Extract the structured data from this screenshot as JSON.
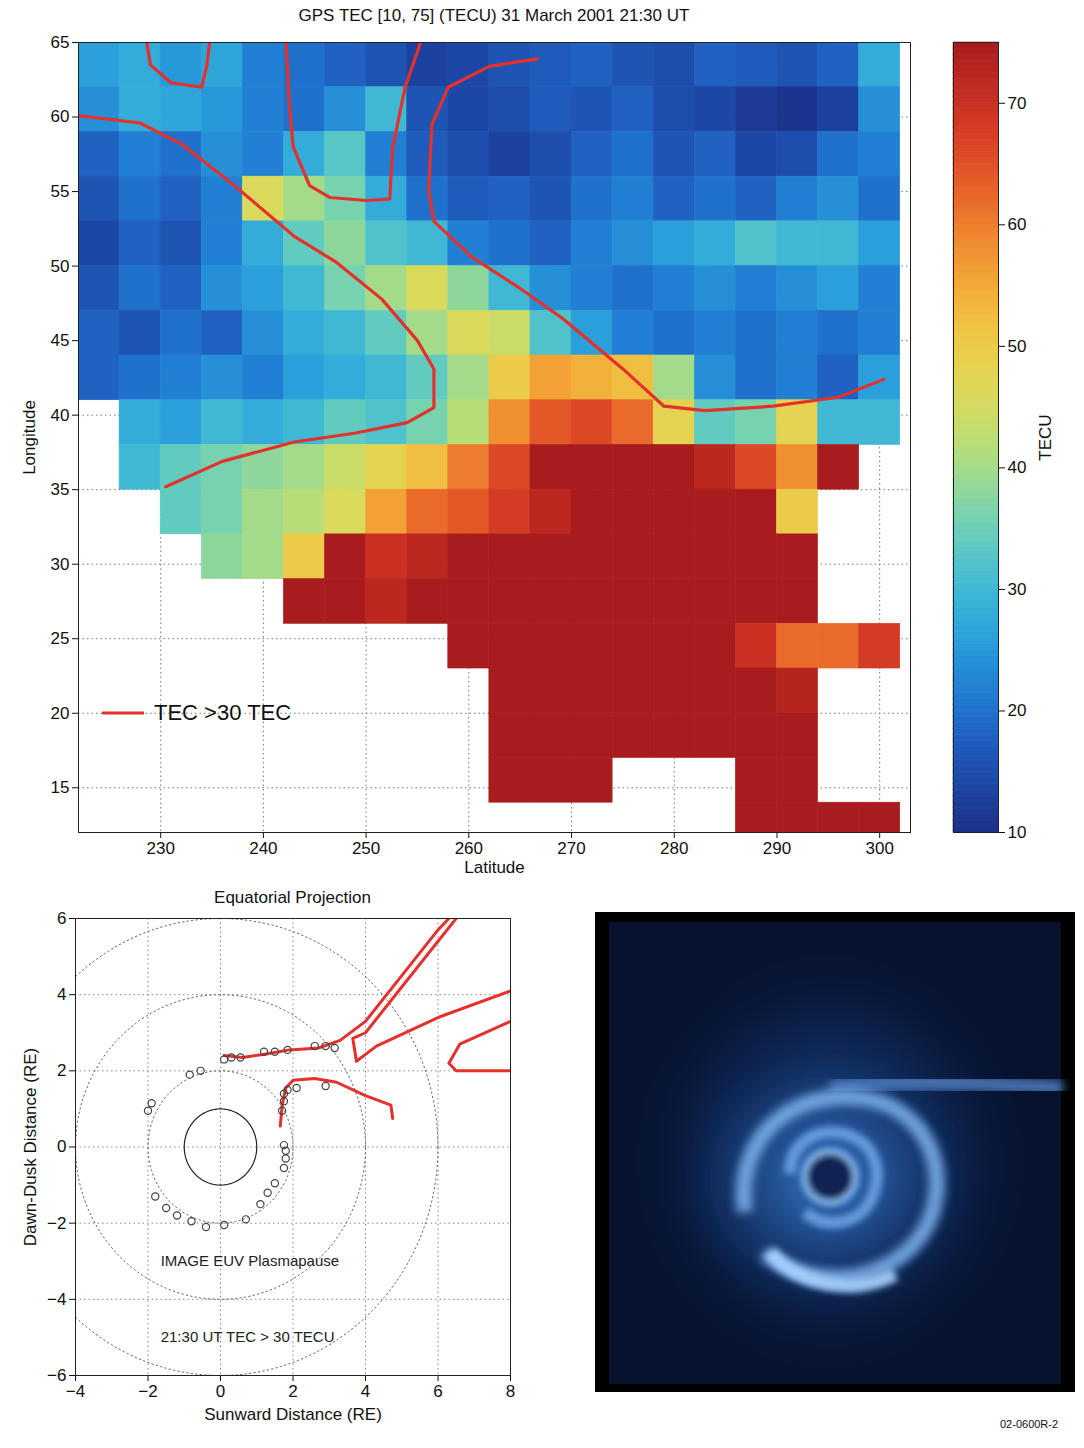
{
  "chart_data": [
    {
      "type": "heatmap",
      "title": "GPS TEC [10, 75] (TECU) 31 March 2001 21:30 UT",
      "x_label": "Latitude",
      "y_label": "Longitude",
      "xlim": [
        222,
        303
      ],
      "xticks": [
        230,
        240,
        250,
        260,
        270,
        280,
        290,
        300
      ],
      "ylim": [
        12,
        65
      ],
      "yticks": [
        15,
        20,
        25,
        30,
        35,
        40,
        45,
        50,
        55,
        60,
        65
      ],
      "grid": true,
      "legend": "lower left",
      "lon_bins": [
        222,
        226,
        230,
        234,
        238,
        242,
        246,
        250,
        254,
        258,
        262,
        266,
        270,
        274,
        278,
        282,
        286,
        290,
        294,
        298,
        302
      ],
      "lat_bins": [
        65,
        62,
        59,
        56,
        53,
        50,
        47,
        44,
        41,
        38,
        35,
        32,
        29,
        26,
        23,
        20,
        17,
        14,
        11
      ],
      "tec": [
        [
          26,
          28,
          25,
          27,
          22,
          20,
          18,
          16,
          13,
          14,
          16,
          17,
          18,
          16,
          15,
          18,
          17,
          16,
          18,
          28
        ],
        [
          24,
          28,
          27,
          25,
          22,
          20,
          24,
          30,
          16,
          14,
          15,
          17,
          16,
          18,
          15,
          14,
          12,
          11,
          13,
          24
        ],
        [
          18,
          22,
          20,
          24,
          22,
          28,
          33,
          22,
          17,
          15,
          13,
          15,
          18,
          20,
          16,
          18,
          14,
          15,
          20,
          22
        ],
        [
          16,
          20,
          18,
          22,
          46,
          40,
          36,
          28,
          20,
          17,
          18,
          16,
          20,
          22,
          18,
          20,
          18,
          22,
          24,
          20
        ],
        [
          14,
          18,
          16,
          22,
          28,
          34,
          38,
          32,
          30,
          22,
          20,
          18,
          22,
          24,
          26,
          28,
          32,
          30,
          30,
          26
        ],
        [
          16,
          20,
          18,
          24,
          26,
          30,
          36,
          40,
          46,
          38,
          30,
          24,
          22,
          20,
          22,
          24,
          22,
          24,
          26,
          22
        ],
        [
          18,
          16,
          20,
          18,
          24,
          28,
          30,
          34,
          40,
          46,
          44,
          32,
          26,
          22,
          20,
          22,
          20,
          22,
          20,
          22
        ],
        [
          18,
          20,
          22,
          24,
          22,
          26,
          28,
          30,
          34,
          40,
          50,
          56,
          54,
          52,
          40,
          24,
          20,
          22,
          18,
          26
        ],
        [
          null,
          28,
          26,
          30,
          28,
          30,
          34,
          32,
          36,
          42,
          58,
          64,
          66,
          62,
          48,
          34,
          36,
          48,
          30,
          30
        ],
        [
          null,
          30,
          34,
          36,
          38,
          40,
          44,
          48,
          52,
          60,
          66,
          75,
          75,
          75,
          75,
          72,
          66,
          58,
          75,
          null
        ],
        [
          null,
          null,
          34,
          36,
          40,
          42,
          46,
          56,
          62,
          64,
          68,
          72,
          75,
          75,
          75,
          75,
          75,
          50,
          null,
          null
        ],
        [
          null,
          null,
          null,
          38,
          40,
          50,
          75,
          70,
          72,
          75,
          75,
          75,
          75,
          75,
          75,
          75,
          75,
          75,
          null,
          null
        ],
        [
          null,
          null,
          null,
          null,
          null,
          75,
          75,
          72,
          75,
          75,
          75,
          75,
          75,
          75,
          75,
          75,
          75,
          75,
          null,
          null
        ],
        [
          null,
          null,
          null,
          null,
          null,
          null,
          null,
          null,
          null,
          75,
          75,
          75,
          75,
          75,
          75,
          75,
          70,
          62,
          62,
          68
        ],
        [
          null,
          null,
          null,
          null,
          null,
          null,
          null,
          null,
          null,
          null,
          75,
          75,
          75,
          75,
          75,
          75,
          75,
          73,
          null,
          null
        ],
        [
          null,
          null,
          null,
          null,
          null,
          null,
          null,
          null,
          null,
          null,
          75,
          75,
          75,
          75,
          75,
          75,
          75,
          75,
          null,
          null
        ],
        [
          null,
          null,
          null,
          null,
          null,
          null,
          null,
          null,
          null,
          null,
          75,
          75,
          75,
          null,
          null,
          null,
          75,
          75,
          null,
          null
        ],
        [
          null,
          null,
          null,
          null,
          null,
          null,
          null,
          null,
          null,
          null,
          null,
          null,
          null,
          null,
          null,
          null,
          75,
          75,
          75,
          75
        ]
      ],
      "colorbar": {
        "label": "TECU",
        "range": [
          10,
          75
        ],
        "ticks": [
          10,
          20,
          30,
          40,
          50,
          60,
          70
        ]
      },
      "series": [
        {
          "name": "TEC >30 TEC",
          "type": "line",
          "color": "#e4312b",
          "lines": [
            [
              [
                228.6,
                65.2
              ],
              [
                229,
                63.5
              ],
              [
                231,
                62.3
              ],
              [
                234,
                62.0
              ],
              [
                234.5,
                63.5
              ],
              [
                234.8,
                65.2
              ]
            ],
            [
              [
                222,
                60.1
              ],
              [
                228,
                59.6
              ],
              [
                232,
                58.2
              ],
              [
                237,
                55.5
              ],
              [
                243,
                52
              ],
              [
                247,
                50.3
              ],
              [
                251.5,
                47.8
              ],
              [
                255,
                45
              ],
              [
                256.6,
                43.1
              ],
              [
                256.6,
                40.5
              ],
              [
                254,
                39.5
              ],
              [
                249,
                38.8
              ],
              [
                243,
                38.2
              ],
              [
                236,
                36.9
              ],
              [
                230.5,
                35.2
              ]
            ],
            [
              [
                242.2,
                65.2
              ],
              [
                242.5,
                61
              ],
              [
                242.9,
                58
              ],
              [
                244.5,
                55.4
              ],
              [
                246.5,
                54.6
              ],
              [
                250,
                54.4
              ],
              [
                252.3,
                54.5
              ],
              [
                252.6,
                58
              ],
              [
                253.8,
                62
              ],
              [
                255.4,
                65.2
              ]
            ],
            [
              [
                266.7,
                63.9
              ],
              [
                262,
                63.4
              ],
              [
                258,
                62
              ],
              [
                256.4,
                59.5
              ],
              [
                256.1,
                55
              ],
              [
                256.6,
                53
              ],
              [
                260.3,
                50.6
              ],
              [
                265,
                48.5
              ],
              [
                269.1,
                46.5
              ],
              [
                275,
                43.1
              ],
              [
                279,
                40.6
              ],
              [
                283,
                40.3
              ],
              [
                289.6,
                40.6
              ],
              [
                296,
                41.2
              ],
              [
                300.4,
                42.4
              ]
            ]
          ]
        }
      ]
    },
    {
      "type": "scatter",
      "title": "Equatorial Projection",
      "x_label": "Sunward Distance (RE)",
      "y_label": "Dawn-Dusk Distance (RE)",
      "xlim": [
        -4,
        8
      ],
      "xticks": [
        -4,
        -2,
        0,
        2,
        4,
        6,
        8
      ],
      "ylim": [
        -6,
        6
      ],
      "yticks": [
        -6,
        -4,
        -2,
        0,
        2,
        4,
        6
      ],
      "grid": true,
      "earth_radius": 1,
      "reference_radii": [
        2,
        4,
        6
      ],
      "series": [
        {
          "type": "scatter",
          "marker": "circle",
          "color": "#444444",
          "x": [
            -2.0,
            -1.9,
            -0.85,
            -0.55,
            0.1,
            0.3,
            0.55,
            1.2,
            1.5,
            1.85,
            2.6,
            2.9,
            3.15,
            1.7,
            1.75,
            1.75,
            1.85,
            2.1,
            2.9,
            1.75,
            1.8,
            1.8,
            1.75,
            1.5,
            1.3,
            1.1,
            0.7,
            0.1,
            -0.4,
            -0.8,
            -1.2,
            -1.5,
            -1.8
          ],
          "y": [
            0.95,
            1.15,
            1.9,
            2.0,
            2.3,
            2.35,
            2.35,
            2.5,
            2.5,
            2.55,
            2.65,
            2.65,
            2.6,
            0.95,
            1.2,
            1.4,
            1.5,
            1.55,
            1.6,
            0.05,
            -0.1,
            -0.3,
            -0.55,
            -0.95,
            -1.2,
            -1.5,
            -1.9,
            -2.05,
            -2.1,
            -1.95,
            -1.8,
            -1.6,
            -1.3
          ]
        },
        {
          "type": "line",
          "color": "#e4312b",
          "lines": [
            [
              [
                0.1,
                2.4
              ],
              [
                0.6,
                2.35
              ],
              [
                1.3,
                2.45
              ],
              [
                1.9,
                2.55
              ],
              [
                2.7,
                2.6
              ],
              [
                3.3,
                2.8
              ],
              [
                4.0,
                3.3
              ],
              [
                5.0,
                4.5
              ],
              [
                6.0,
                5.7
              ],
              [
                6.3,
                6.0
              ]
            ],
            [
              [
                6.5,
                6.0
              ],
              [
                5.0,
                4.2
              ],
              [
                4.0,
                3.0
              ],
              [
                3.65,
                2.85
              ],
              [
                3.75,
                2.25
              ],
              [
                4.3,
                2.65
              ],
              [
                6.0,
                3.4
              ],
              [
                8.0,
                4.1
              ]
            ],
            [
              [
                8.0,
                3.3
              ],
              [
                6.6,
                2.7
              ],
              [
                6.3,
                2.2
              ],
              [
                6.5,
                2.0
              ],
              [
                8.0,
                2.0
              ]
            ],
            [
              [
                1.65,
                0.55
              ],
              [
                1.7,
                1.1
              ],
              [
                1.8,
                1.55
              ],
              [
                2.0,
                1.75
              ],
              [
                2.6,
                1.8
              ],
              [
                3.2,
                1.7
              ],
              [
                4.0,
                1.35
              ],
              [
                4.7,
                1.1
              ],
              [
                4.75,
                0.75
              ]
            ]
          ]
        }
      ],
      "annotations": [
        {
          "text": "IMAGE EUV Plasmapause",
          "x": -1.65,
          "y": -3.0
        },
        {
          "text": "21:30 UT TEC > 30 TECU",
          "x": -1.65,
          "y": -5.0
        }
      ]
    }
  ],
  "figure_id": "02-0600R-2"
}
